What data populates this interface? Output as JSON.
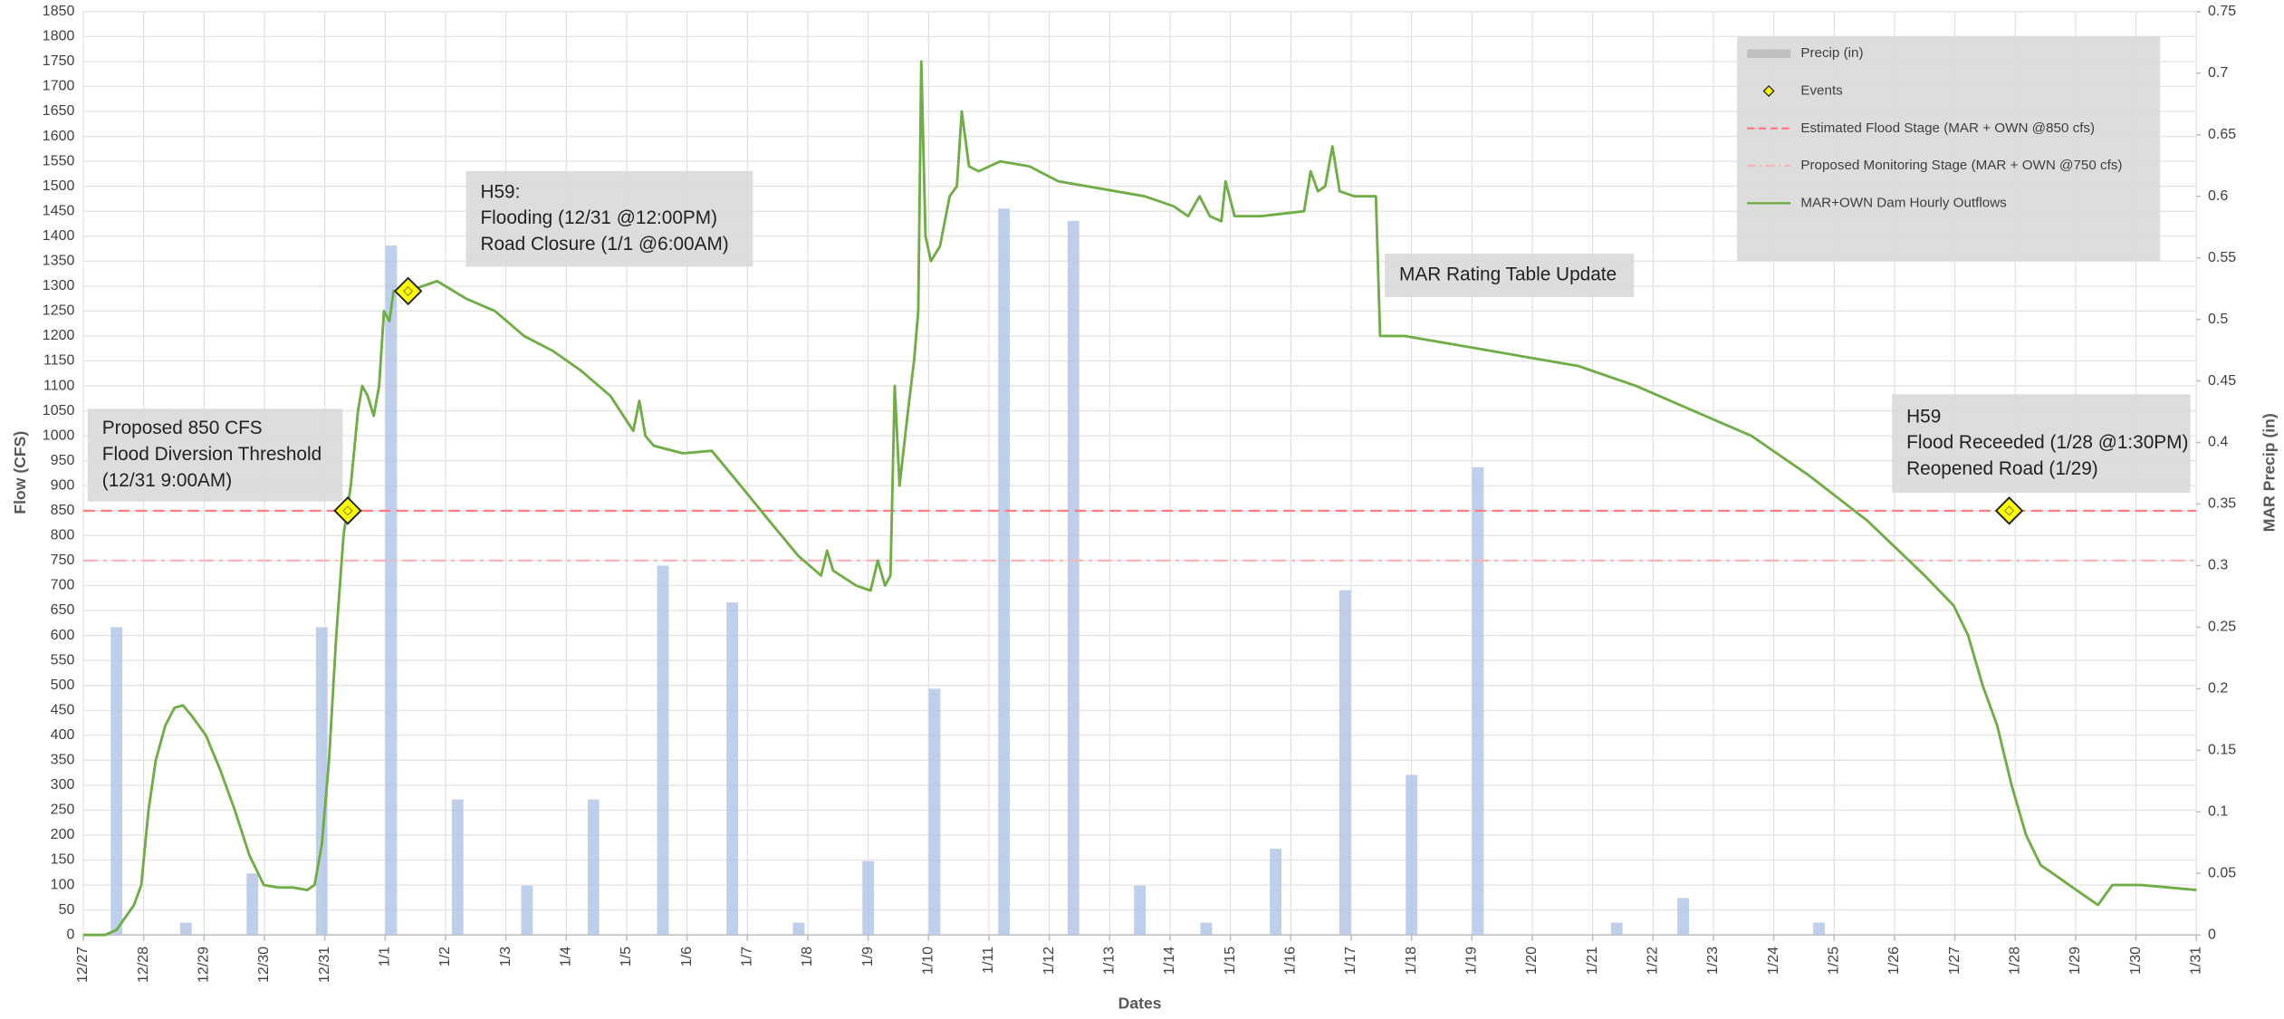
{
  "chart_data": {
    "type": "combo",
    "x_label": "Dates",
    "y_label": "Flow (CFS)",
    "y2_label": "MAR Precip (in)",
    "grid": true,
    "legend": "upper right",
    "xlim": [
      0,
      35
    ],
    "xticks": [
      {
        "value": 0,
        "label": "12/27"
      },
      {
        "value": 1,
        "label": "12/28"
      },
      {
        "value": 2,
        "label": "12/29"
      },
      {
        "value": 3,
        "label": "12/30"
      },
      {
        "value": 4,
        "label": "12/31"
      },
      {
        "value": 5,
        "label": "1/1"
      },
      {
        "value": 6,
        "label": "1/2"
      },
      {
        "value": 7,
        "label": "1/3"
      },
      {
        "value": 8,
        "label": "1/4"
      },
      {
        "value": 9,
        "label": "1/5"
      },
      {
        "value": 10,
        "label": "1/6"
      },
      {
        "value": 11,
        "label": "1/7"
      },
      {
        "value": 12,
        "label": "1/8"
      },
      {
        "value": 13,
        "label": "1/9"
      },
      {
        "value": 14,
        "label": "1/10"
      },
      {
        "value": 15,
        "label": "1/11"
      },
      {
        "value": 16,
        "label": "1/12"
      },
      {
        "value": 17,
        "label": "1/13"
      },
      {
        "value": 18,
        "label": "1/14"
      },
      {
        "value": 19,
        "label": "1/15"
      },
      {
        "value": 20,
        "label": "1/16"
      },
      {
        "value": 21,
        "label": "1/17"
      },
      {
        "value": 22,
        "label": "1/18"
      },
      {
        "value": 23,
        "label": "1/19"
      },
      {
        "value": 24,
        "label": "1/20"
      },
      {
        "value": 25,
        "label": "1/21"
      },
      {
        "value": 26,
        "label": "1/22"
      },
      {
        "value": 27,
        "label": "1/23"
      },
      {
        "value": 28,
        "label": "1/24"
      },
      {
        "value": 29,
        "label": "1/25"
      },
      {
        "value": 30,
        "label": "1/26"
      },
      {
        "value": 31,
        "label": "1/27"
      },
      {
        "value": 32,
        "label": "1/28"
      },
      {
        "value": 33,
        "label": "1/29"
      },
      {
        "value": 34,
        "label": "1/30"
      },
      {
        "value": 35,
        "label": "1/31"
      }
    ],
    "ylim": [
      0,
      1850
    ],
    "yticks": [
      0,
      50,
      100,
      150,
      200,
      250,
      300,
      350,
      400,
      450,
      500,
      550,
      600,
      650,
      700,
      750,
      800,
      850,
      900,
      950,
      1000,
      1050,
      1100,
      1150,
      1200,
      1250,
      1300,
      1350,
      1400,
      1450,
      1500,
      1550,
      1600,
      1650,
      1700,
      1750,
      1800,
      1850
    ],
    "y2lim": [
      0,
      0.75
    ],
    "y2ticks": [
      0,
      0.05,
      0.1,
      0.15,
      0.2,
      0.25,
      0.3,
      0.35,
      0.4,
      0.45,
      0.5,
      0.55,
      0.6,
      0.65,
      0.7,
      0.75
    ],
    "series": [
      {
        "name": "Precip (in)",
        "type": "bar",
        "axis": "y2",
        "color": "#b4c7e7",
        "x": [
          0.55,
          1.7,
          2.8,
          3.95,
          5.1,
          6.2,
          7.35,
          8.45,
          9.6,
          10.75,
          11.85,
          13.0,
          14.1,
          15.25,
          16.4,
          17.5,
          18.6,
          19.75,
          20.9,
          22.0,
          23.1,
          25.4,
          26.5,
          28.75
        ],
        "values": [
          0.25,
          0.01,
          0.05,
          0.25,
          0.56,
          0.11,
          0.04,
          0.11,
          0.3,
          0.27,
          0.01,
          0.06,
          0.2,
          0.59,
          0.58,
          0.04,
          0.01,
          0.07,
          0.28,
          0.13,
          0.38,
          0.01,
          0.03,
          0.01
        ]
      },
      {
        "name": "Events",
        "type": "scatter",
        "color": "#ffff00",
        "x": [
          4.38,
          5.38,
          31.9
        ],
        "values": [
          850,
          1290,
          850
        ]
      },
      {
        "name": "Estimated Flood Stage (MAR + OWN @850 cfs)",
        "type": "hline",
        "color": "#ff7c80",
        "values": [
          850
        ]
      },
      {
        "name": "Proposed Monitoring Stage  (MAR + OWN @750 cfs)",
        "type": "hline",
        "color": "#f4b6b8",
        "values": [
          750
        ]
      },
      {
        "name": "MAR+OWN Dam Hourly Outflows",
        "type": "line",
        "color": "#70ad47",
        "x": [
          0,
          0.36,
          0.55,
          0.84,
          0.96,
          1.08,
          1.2,
          1.36,
          1.51,
          1.65,
          1.79,
          2.03,
          2.27,
          2.51,
          2.75,
          2.99,
          3.23,
          3.47,
          3.71,
          3.83,
          3.95,
          4.07,
          4.19,
          4.31,
          4.43,
          4.55,
          4.62,
          4.71,
          4.81,
          4.9,
          4.98,
          5.07,
          5.14,
          5.38,
          5.86,
          6.34,
          6.82,
          7.3,
          7.78,
          8.25,
          8.73,
          9.11,
          9.21,
          9.31,
          9.45,
          9.93,
          10.41,
          10.89,
          11.36,
          11.84,
          12.22,
          12.32,
          12.42,
          12.8,
          13.04,
          13.16,
          13.28,
          13.37,
          13.44,
          13.52,
          13.66,
          13.76,
          13.83,
          13.88,
          13.95,
          14.04,
          14.19,
          14.35,
          14.47,
          14.55,
          14.67,
          14.83,
          15.19,
          15.67,
          16.15,
          16.63,
          17.58,
          18.06,
          18.3,
          18.49,
          18.66,
          18.85,
          18.92,
          19.07,
          19.5,
          20.22,
          20.33,
          20.45,
          20.57,
          20.69,
          20.81,
          21.05,
          21.41,
          21.48,
          21.89,
          22.85,
          23.8,
          24.76,
          25.72,
          26.67,
          27.63,
          28.59,
          29.55,
          30.5,
          30.98,
          31.22,
          31.46,
          31.7,
          31.94,
          32.18,
          32.42,
          32.66,
          33.13,
          33.37,
          33.61,
          34.09,
          35
        ],
        "values": [
          0,
          0,
          10,
          60,
          100,
          250,
          350,
          420,
          455,
          460,
          440,
          400,
          330,
          250,
          160,
          100,
          95,
          95,
          90,
          100,
          180,
          350,
          600,
          800,
          900,
          1050,
          1100,
          1080,
          1040,
          1100,
          1250,
          1230,
          1290,
          1290,
          1310,
          1275,
          1250,
          1200,
          1170,
          1130,
          1080,
          1010,
          1070,
          1000,
          980,
          965,
          970,
          900,
          830,
          760,
          720,
          770,
          730,
          700,
          690,
          750,
          700,
          720,
          1100,
          900,
          1050,
          1150,
          1250,
          1750,
          1400,
          1350,
          1380,
          1480,
          1500,
          1650,
          1540,
          1530,
          1550,
          1540,
          1510,
          1500,
          1480,
          1460,
          1440,
          1480,
          1440,
          1430,
          1510,
          1440,
          1440,
          1450,
          1530,
          1490,
          1500,
          1580,
          1490,
          1480,
          1480,
          1200,
          1200,
          1180,
          1160,
          1140,
          1100,
          1050,
          1000,
          920,
          830,
          720,
          660,
          600,
          500,
          420,
          300,
          200,
          140,
          120,
          80,
          60,
          100,
          100,
          90
        ]
      }
    ],
    "annotations": [
      [
        "Proposed 850 CFS",
        "Flood Diversion Threshold",
        "(12/31 9:00AM)"
      ],
      [
        "H59:",
        "Flooding (12/31 @12:00PM)",
        "Road Closure  (1/1 @6:00AM)"
      ],
      [
        "MAR Rating Table Update"
      ],
      [
        "H59",
        "Flood Receeded (1/28 @1:30PM)",
        "Reopened Road (1/29)"
      ]
    ]
  }
}
